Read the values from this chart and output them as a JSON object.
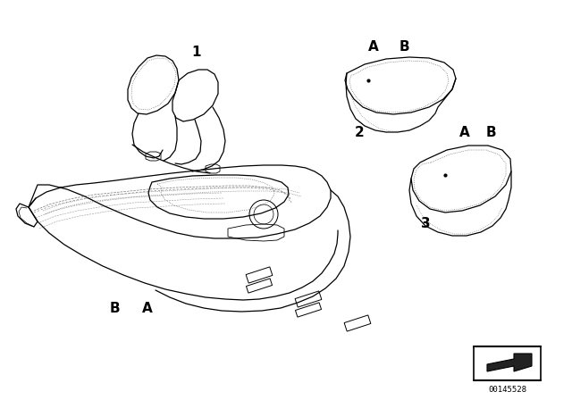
{
  "background_color": "#ffffff",
  "fig_width": 6.4,
  "fig_height": 4.48,
  "dpi": 100,
  "label_1": "1",
  "label_2": "2",
  "label_3": "3",
  "label_A_top": "A",
  "label_B_top": "B",
  "label_A_mid": "A",
  "label_B_mid": "B",
  "label_B_bot": "B",
  "label_A_bot": "A",
  "part_number": "00145528",
  "font_size_labels": 10,
  "line_color": "#000000",
  "line_width": 0.9,
  "dash_color": "#555555"
}
